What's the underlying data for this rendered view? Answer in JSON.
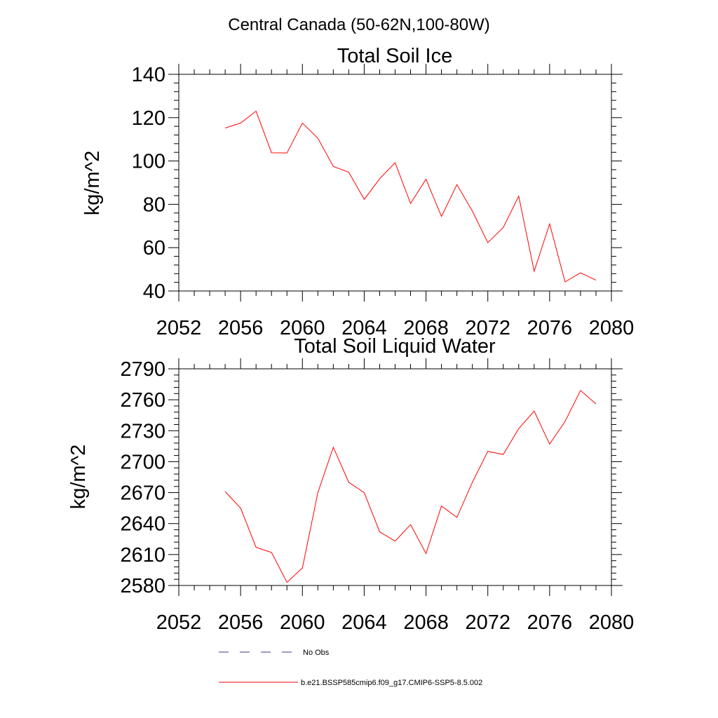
{
  "figure_title": "Central Canada (50-62N,100-80W)",
  "colors": {
    "model_line": "#ff0000",
    "obs_line": "#3a3a8c",
    "axis": "#000000"
  },
  "legend": {
    "entries": [
      {
        "label": "No Obs",
        "style": "dashed",
        "color": "#3a3a8c"
      },
      {
        "label": "b.e21.BSSP585cmip6.f09_g17.CMIP6-SSP5-8.5.002",
        "style": "solid",
        "color": "#ff0000"
      }
    ]
  },
  "chart_data": [
    {
      "type": "line",
      "title": "Total Soil Ice",
      "xlabel": "",
      "ylabel": "kg/m^2",
      "xlim": [
        2052,
        2080
      ],
      "ylim": [
        40,
        140
      ],
      "xticks": [
        2052,
        2056,
        2060,
        2064,
        2068,
        2072,
        2076,
        2080
      ],
      "yticks": [
        40,
        60,
        80,
        100,
        120,
        140
      ],
      "x": [
        2055,
        2056,
        2057,
        2058,
        2059,
        2060,
        2061,
        2062,
        2063,
        2064,
        2065,
        2066,
        2067,
        2068,
        2069,
        2070,
        2071,
        2072,
        2073,
        2074,
        2075,
        2076,
        2077,
        2078,
        2079
      ],
      "series": [
        {
          "values": [
            115.2,
            117.5,
            123.0,
            103.8,
            103.7,
            117.5,
            110.5,
            97.5,
            94.8,
            82.3,
            91.8,
            99.2,
            80.4,
            91.6,
            74.4,
            89.1,
            76.9,
            62.3,
            69.3,
            83.8,
            49.1,
            71.0,
            44.2,
            48.4,
            45.0
          ]
        }
      ]
    },
    {
      "type": "line",
      "title": "Total Soil Liquid Water",
      "xlabel": "",
      "ylabel": "kg/m^2",
      "xlim": [
        2052,
        2080
      ],
      "ylim": [
        2580,
        2790
      ],
      "xticks": [
        2052,
        2056,
        2060,
        2064,
        2068,
        2072,
        2076,
        2080
      ],
      "yticks": [
        2580,
        2610,
        2640,
        2670,
        2700,
        2730,
        2760,
        2790
      ],
      "x": [
        2055,
        2056,
        2057,
        2058,
        2059,
        2060,
        2061,
        2062,
        2063,
        2064,
        2065,
        2066,
        2067,
        2068,
        2069,
        2070,
        2071,
        2072,
        2073,
        2074,
        2075,
        2076,
        2077,
        2078,
        2079
      ],
      "series": [
        {
          "values": [
            2671,
            2655,
            2617,
            2612,
            2583,
            2597,
            2670,
            2714,
            2680,
            2670,
            2632,
            2623,
            2639,
            2611,
            2657,
            2646,
            2680,
            2710,
            2707,
            2732,
            2749,
            2717,
            2739,
            2769,
            2756
          ]
        }
      ]
    }
  ]
}
